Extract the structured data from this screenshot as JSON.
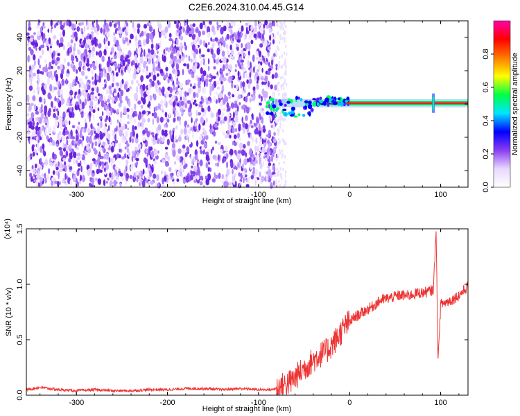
{
  "title": "C2E6.2024.310.04.45.G14",
  "chart_data": [
    {
      "type": "heatmap",
      "xlabel": "Height of straight line (km)",
      "ylabel": "Frequency (Hz)",
      "xlim": [
        -355,
        130
      ],
      "ylim": [
        -50,
        50
      ],
      "x_ticks": [
        -300,
        -200,
        -100,
        0,
        100
      ],
      "y_ticks": [
        -40,
        -20,
        0,
        20,
        40
      ],
      "colorbar": {
        "label": "Normalized spectral amplitude",
        "range": [
          0.0,
          1.0
        ],
        "ticks": [
          0.0,
          0.2,
          0.4,
          0.6,
          0.8
        ],
        "tick_labels": [
          "0.0",
          "0.2",
          "0.4",
          "0.6",
          "0.8"
        ],
        "colors": [
          "#ffffff",
          "#e9d8ff",
          "#8a3cf0",
          "#0000ff",
          "#00e5ff",
          "#00ff44",
          "#ffff00",
          "#ff7a00",
          "#ff0000",
          "#ff00aa"
        ]
      },
      "noise_region_x": [
        -355,
        -80
      ],
      "signal_line": {
        "x": [
          -85,
          130
        ],
        "frequency": 0.5
      }
    },
    {
      "type": "line",
      "xlabel": "Height of straight line (km)",
      "ylabel": "SNR (10 * v/v)",
      "y_multiplier": "(x10⁴)",
      "xlim": [
        -355,
        130
      ],
      "ylim": [
        0.0,
        1.5
      ],
      "x_ticks": [
        -300,
        -200,
        -100,
        0,
        100
      ],
      "y_ticks": [
        0.0,
        0.5,
        1.0,
        1.5
      ],
      "y_tick_labels": [
        "0.0",
        "0.5",
        "1.0",
        "1.5"
      ],
      "series": [
        {
          "color": "#ee3333",
          "x": [
            -355,
            -340,
            -320,
            -300,
            -280,
            -260,
            -240,
            -220,
            -200,
            -180,
            -160,
            -140,
            -120,
            -100,
            -85,
            -75,
            -65,
            -55,
            -45,
            -35,
            -25,
            -15,
            -5,
            5,
            15,
            25,
            35,
            45,
            55,
            65,
            75,
            85,
            92,
            95,
            97,
            100,
            110,
            120,
            130
          ],
          "y": [
            0.05,
            0.07,
            0.05,
            0.04,
            0.05,
            0.04,
            0.04,
            0.05,
            0.05,
            0.06,
            0.06,
            0.05,
            0.06,
            0.05,
            0.05,
            0.08,
            0.12,
            0.2,
            0.28,
            0.35,
            0.4,
            0.5,
            0.62,
            0.7,
            0.75,
            0.8,
            0.86,
            0.88,
            0.9,
            0.9,
            0.92,
            0.93,
            0.95,
            1.5,
            0.3,
            0.82,
            0.85,
            0.9,
            0.98
          ]
        }
      ]
    }
  ]
}
